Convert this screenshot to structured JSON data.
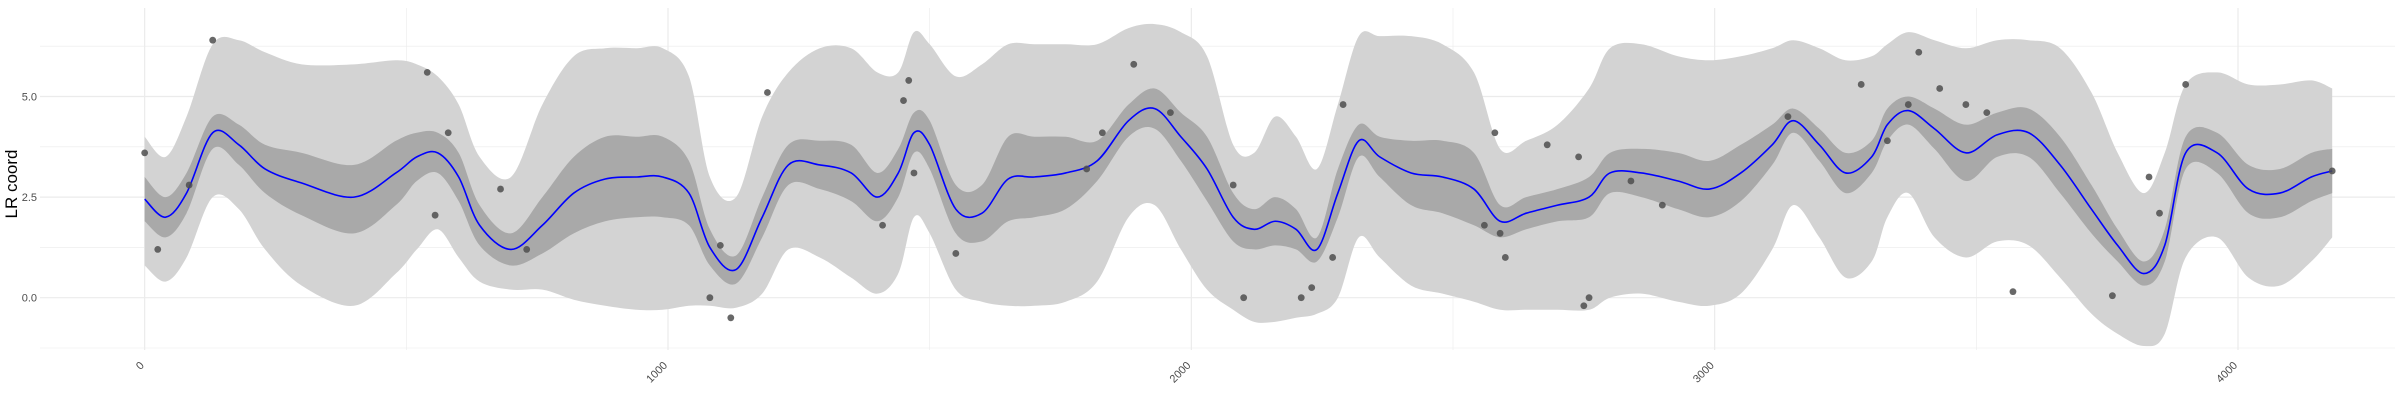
{
  "chart_data": {
    "type": "line",
    "title": "",
    "xlabel": "",
    "ylabel": "LR coord",
    "xlim": [
      -200,
      4300
    ],
    "ylim": [
      -1.3,
      7.2
    ],
    "x_ticks": [
      0,
      1000,
      2000,
      3000,
      4000
    ],
    "y_ticks": [
      0.0,
      2.5,
      5.0
    ],
    "x_tick_labels": [
      "0",
      "1000",
      "2000",
      "3000",
      "4000"
    ],
    "y_tick_labels": [
      "0.0",
      "2.5",
      "5.0"
    ],
    "grid": true,
    "colors": {
      "mean_line": "#0000ff",
      "inner_band": "#a9a9a9",
      "outer_band": "#d3d3d3",
      "points": "#4d4d4d",
      "grid": "#ebebeb"
    },
    "mean": {
      "x": [
        0,
        40,
        80,
        130,
        180,
        230,
        300,
        400,
        480,
        520,
        560,
        600,
        640,
        700,
        760,
        820,
        880,
        940,
        990,
        1040,
        1080,
        1130,
        1180,
        1230,
        1290,
        1350,
        1400,
        1440,
        1470,
        1500,
        1550,
        1600,
        1650,
        1700,
        1760,
        1820,
        1880,
        1930,
        1980,
        2030,
        2080,
        2120,
        2160,
        2200,
        2240,
        2280,
        2320,
        2360,
        2420,
        2480,
        2540,
        2590,
        2640,
        2700,
        2760,
        2800,
        2860,
        2930,
        2990,
        3050,
        3110,
        3150,
        3200,
        3250,
        3300,
        3330,
        3370,
        3420,
        3480,
        3540,
        3600,
        3660,
        3720,
        3770,
        3820,
        3860,
        3900,
        3960,
        4020,
        4080,
        4140,
        4180
      ],
      "y": [
        2.45,
        2.0,
        2.6,
        4.1,
        3.8,
        3.2,
        2.85,
        2.5,
        3.1,
        3.5,
        3.6,
        3.0,
        1.8,
        1.2,
        1.8,
        2.6,
        2.95,
        3.0,
        3.0,
        2.6,
        1.25,
        0.7,
        2.0,
        3.3,
        3.3,
        3.1,
        2.5,
        3.1,
        4.1,
        3.8,
        2.2,
        2.1,
        2.95,
        3.0,
        3.1,
        3.4,
        4.4,
        4.7,
        4.0,
        3.2,
        2.0,
        1.7,
        1.9,
        1.7,
        1.2,
        2.6,
        3.9,
        3.5,
        3.1,
        3.0,
        2.7,
        1.9,
        2.1,
        2.3,
        2.5,
        3.1,
        3.1,
        2.9,
        2.7,
        3.1,
        3.8,
        4.4,
        3.8,
        3.1,
        3.5,
        4.3,
        4.65,
        4.2,
        3.6,
        4.05,
        4.1,
        3.3,
        2.2,
        1.3,
        0.6,
        1.3,
        3.6,
        3.6,
        2.7,
        2.6,
        3.0,
        3.15
      ]
    },
    "inner_band": {
      "x": [
        0,
        40,
        80,
        130,
        180,
        230,
        300,
        400,
        480,
        520,
        560,
        600,
        640,
        700,
        760,
        820,
        880,
        940,
        990,
        1040,
        1080,
        1130,
        1180,
        1230,
        1290,
        1350,
        1400,
        1440,
        1470,
        1500,
        1550,
        1600,
        1650,
        1700,
        1760,
        1820,
        1880,
        1930,
        1980,
        2030,
        2080,
        2120,
        2160,
        2200,
        2240,
        2280,
        2320,
        2360,
        2420,
        2480,
        2540,
        2590,
        2640,
        2700,
        2760,
        2800,
        2860,
        2930,
        2990,
        3050,
        3110,
        3150,
        3200,
        3250,
        3300,
        3330,
        3370,
        3420,
        3480,
        3540,
        3600,
        3660,
        3720,
        3770,
        3820,
        3860,
        3900,
        3960,
        4020,
        4080,
        4140,
        4180
      ],
      "lower": [
        1.9,
        1.5,
        2.1,
        3.7,
        3.3,
        2.6,
        2.05,
        1.6,
        2.3,
        2.9,
        3.1,
        2.4,
        1.3,
        0.8,
        1.1,
        1.6,
        1.9,
        2.0,
        2.0,
        1.8,
        0.8,
        0.35,
        1.5,
        2.8,
        2.7,
        2.4,
        1.9,
        2.5,
        3.6,
        3.2,
        1.6,
        1.4,
        1.9,
        2.0,
        2.2,
        2.9,
        4.0,
        4.2,
        3.4,
        2.4,
        1.4,
        1.2,
        1.3,
        1.2,
        0.9,
        2.0,
        3.5,
        3.0,
        2.3,
        2.1,
        1.8,
        1.5,
        1.7,
        1.9,
        2.0,
        2.6,
        2.5,
        2.2,
        2.0,
        2.4,
        3.3,
        4.1,
        3.4,
        2.6,
        3.1,
        3.9,
        4.3,
        3.7,
        2.9,
        3.5,
        3.5,
        2.6,
        1.6,
        0.9,
        0.3,
        0.9,
        3.2,
        3.1,
        2.1,
        2.0,
        2.4,
        2.6
      ],
      "upper": [
        3.0,
        2.5,
        3.1,
        4.5,
        4.3,
        3.8,
        3.6,
        3.3,
        3.9,
        4.1,
        4.1,
        3.6,
        2.3,
        1.6,
        2.5,
        3.5,
        4.0,
        4.0,
        4.0,
        3.4,
        1.7,
        1.05,
        2.5,
        3.8,
        3.9,
        3.8,
        3.1,
        3.7,
        4.6,
        4.4,
        2.8,
        2.8,
        4.0,
        4.0,
        4.0,
        3.9,
        4.8,
        5.2,
        4.6,
        4.0,
        2.6,
        2.2,
        2.5,
        2.2,
        1.5,
        3.2,
        4.3,
        4.0,
        3.9,
        3.9,
        3.6,
        2.3,
        2.5,
        2.7,
        3.0,
        3.6,
        3.7,
        3.6,
        3.4,
        3.8,
        4.3,
        4.7,
        4.2,
        3.6,
        3.9,
        4.7,
        5.0,
        4.7,
        4.3,
        4.6,
        4.7,
        4.0,
        2.8,
        1.7,
        0.9,
        1.7,
        4.0,
        4.1,
        3.3,
        3.2,
        3.6,
        3.7
      ]
    },
    "outer_band": {
      "x": [
        0,
        40,
        80,
        130,
        180,
        230,
        300,
        400,
        480,
        520,
        560,
        600,
        640,
        700,
        760,
        820,
        880,
        940,
        990,
        1040,
        1080,
        1130,
        1180,
        1230,
        1290,
        1350,
        1400,
        1440,
        1470,
        1500,
        1550,
        1600,
        1650,
        1700,
        1760,
        1820,
        1880,
        1930,
        1980,
        2030,
        2080,
        2120,
        2160,
        2200,
        2240,
        2280,
        2320,
        2360,
        2420,
        2480,
        2540,
        2590,
        2640,
        2700,
        2760,
        2800,
        2860,
        2930,
        2990,
        3050,
        3110,
        3150,
        3200,
        3250,
        3300,
        3330,
        3370,
        3420,
        3480,
        3540,
        3600,
        3660,
        3720,
        3770,
        3820,
        3860,
        3900,
        3960,
        4020,
        4080,
        4140,
        4180
      ],
      "lower": [
        0.8,
        0.4,
        1.0,
        2.5,
        2.2,
        1.2,
        0.3,
        -0.2,
        0.6,
        1.2,
        1.7,
        1.0,
        0.4,
        0.2,
        0.2,
        -0.05,
        -0.2,
        -0.3,
        -0.3,
        -0.2,
        -0.2,
        -0.25,
        0.1,
        1.2,
        1.0,
        0.5,
        0.1,
        0.6,
        2.0,
        1.6,
        0.2,
        -0.1,
        -0.2,
        -0.2,
        -0.1,
        0.4,
        2.0,
        2.3,
        1.2,
        0.2,
        -0.3,
        -0.6,
        -0.6,
        -0.5,
        -0.4,
        0.0,
        1.5,
        1.0,
        0.3,
        0.1,
        -0.1,
        -0.3,
        -0.3,
        -0.3,
        -0.3,
        0.0,
        0.1,
        -0.1,
        -0.2,
        0.1,
        1.2,
        2.3,
        1.5,
        0.5,
        0.9,
        2.0,
        2.6,
        1.5,
        1.0,
        1.4,
        1.3,
        0.5,
        -0.4,
        -0.9,
        -1.2,
        -0.9,
        1.0,
        1.5,
        0.5,
        0.3,
        0.9,
        1.5
      ],
      "upper": [
        4.0,
        3.5,
        4.5,
        6.3,
        6.4,
        6.1,
        5.8,
        5.8,
        5.9,
        5.8,
        5.5,
        4.8,
        3.5,
        3.0,
        4.8,
        6.0,
        6.2,
        6.2,
        6.2,
        5.5,
        3.0,
        2.5,
        4.5,
        5.6,
        6.2,
        6.2,
        5.6,
        5.6,
        6.6,
        6.3,
        5.5,
        5.8,
        6.3,
        6.3,
        6.3,
        6.3,
        6.7,
        6.8,
        6.6,
        6.0,
        3.8,
        3.6,
        4.5,
        4.0,
        3.2,
        4.8,
        6.5,
        6.5,
        6.5,
        6.3,
        5.6,
        3.7,
        3.9,
        4.3,
        5.2,
        6.2,
        6.3,
        6.0,
        5.9,
        6.0,
        6.2,
        6.4,
        6.2,
        5.9,
        6.0,
        6.3,
        6.6,
        6.4,
        6.2,
        6.4,
        6.4,
        6.2,
        5.1,
        3.6,
        2.6,
        3.6,
        5.3,
        5.6,
        5.3,
        5.3,
        5.4,
        5.2
      ]
    },
    "points": {
      "x": [
        0,
        25,
        85,
        130,
        540,
        555,
        580,
        680,
        730,
        1080,
        1100,
        1120,
        1190,
        1410,
        1450,
        1460,
        1470,
        1550,
        1800,
        1830,
        1890,
        1960,
        2080,
        2100,
        2210,
        2230,
        2270,
        2290,
        2560,
        2580,
        2590,
        2600,
        2680,
        2740,
        2750,
        2760,
        2840,
        2900,
        3140,
        3280,
        3330,
        3370,
        3390,
        3430,
        3480,
        3520,
        3570,
        3760,
        3830,
        3850,
        3900,
        4180
      ],
      "y": [
        3.6,
        1.2,
        2.8,
        6.4,
        5.6,
        2.05,
        4.1,
        2.7,
        1.2,
        0.0,
        1.3,
        -0.5,
        5.1,
        1.8,
        4.9,
        5.4,
        3.1,
        1.1,
        3.2,
        4.1,
        5.8,
        4.6,
        2.8,
        0.0,
        0.0,
        0.25,
        1.0,
        4.8,
        1.8,
        4.1,
        1.6,
        1.0,
        3.8,
        3.5,
        -0.2,
        0.0,
        2.9,
        2.3,
        4.5,
        5.3,
        3.9,
        4.8,
        6.1,
        5.2,
        4.8,
        4.6,
        0.15,
        0.05,
        3.0,
        2.1,
        5.3,
        3.15
      ]
    }
  }
}
